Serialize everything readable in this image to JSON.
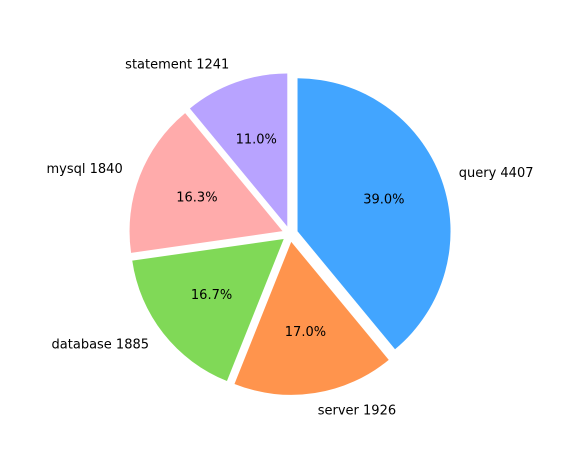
{
  "chart_data": {
    "type": "pie",
    "title": "",
    "start_angle_deg": 90,
    "direction": "clockwise",
    "explode": true,
    "slices": [
      {
        "label": "query",
        "value": 4407,
        "display_label": "query 4407",
        "percent_label": "39.0%",
        "color": "#42a5ff"
      },
      {
        "label": "server",
        "value": 1926,
        "display_label": "server 1926",
        "percent_label": "17.0%",
        "color": "#ff944d"
      },
      {
        "label": "database",
        "value": 1885,
        "display_label": "database 1885",
        "percent_label": "16.7%",
        "color": "#80d957"
      },
      {
        "label": "mysql",
        "value": 1840,
        "display_label": "mysql 1840",
        "percent_label": "16.3%",
        "color": "#ffabab"
      },
      {
        "label": "statement",
        "value": 1241,
        "display_label": "statement 1241",
        "percent_label": "11.0%",
        "color": "#b8a3ff"
      }
    ]
  }
}
